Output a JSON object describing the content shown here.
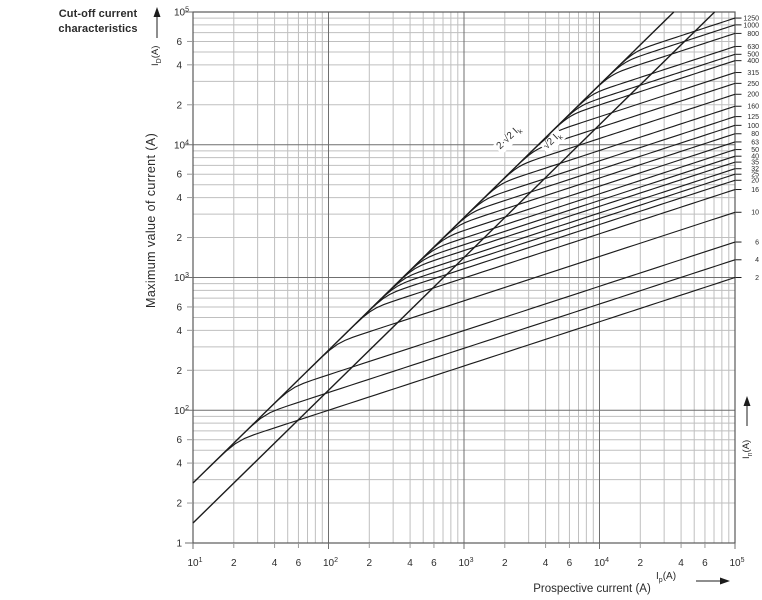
{
  "title": {
    "line1": "Cut-off current",
    "line2": "characteristics"
  },
  "colors": {
    "curve": "#1c1c1c",
    "grid_minor": "#bfbfbf",
    "grid_major": "#6f6f6f",
    "frame": "#5a5a5a",
    "text": "#2b2b2b"
  },
  "chart_data": {
    "type": "line",
    "title": "Cut-off current characteristics",
    "grid": "full log-log grid, minor lines at mantissa 2-9, dark decade lines",
    "x_axis": {
      "title": "Prospective current (A)",
      "symbol_main": "I",
      "symbol_sub": "p",
      "symbol_suffix": "(A)",
      "scale": "log",
      "range": [
        10,
        100000
      ],
      "exponents": [
        1,
        2,
        3,
        4,
        5
      ],
      "minor_labels": [
        2,
        4,
        6
      ]
    },
    "y_axis": {
      "title": "Maximum value of current (A)",
      "symbol_main": "I",
      "symbol_sub": "D",
      "symbol_suffix": "(A)",
      "scale": "log",
      "range": [
        10,
        100000
      ],
      "exponents": [
        5,
        4,
        3,
        2
      ],
      "bottom_label": "1",
      "minor_labels": [
        6,
        4,
        2
      ]
    },
    "right_axis": {
      "symbol_main": "I",
      "symbol_sub": "n",
      "symbol_suffix": "(A)",
      "meaning": "rated current of fuse (A), labels at curve end points"
    },
    "reference_lines": [
      {
        "label_main": "2·√2 I",
        "label_sub": "k",
        "factor": 2.8284,
        "description": "peak asymmetrical prospective current line y = 2√2·x"
      },
      {
        "label_main": "√2 I",
        "label_sub": "k",
        "factor": 1.4142,
        "description": "peak symmetrical prospective current line y = √2·x"
      }
    ],
    "series_note": "Each rated-current curve follows the 2√2·Ik line at low prospective current, then branches off with slope 1/3 (log-log) up to its cut-off value at 100 kA (right edge).",
    "series": [
      {
        "rating": "1250",
        "cutoff_at_100kA": 90000
      },
      {
        "rating": "1000",
        "cutoff_at_100kA": 80000
      },
      {
        "rating": "800",
        "cutoff_at_100kA": 69000
      },
      {
        "rating": "630",
        "cutoff_at_100kA": 55000
      },
      {
        "rating": "500",
        "cutoff_at_100kA": 48000
      },
      {
        "rating": "400",
        "cutoff_at_100kA": 43000
      },
      {
        "rating": "315",
        "cutoff_at_100kA": 35000
      },
      {
        "rating": "250",
        "cutoff_at_100kA": 29000
      },
      {
        "rating": "200",
        "cutoff_at_100kA": 24000
      },
      {
        "rating": "160",
        "cutoff_at_100kA": 19500
      },
      {
        "rating": "125",
        "cutoff_at_100kA": 16300
      },
      {
        "rating": "100",
        "cutoff_at_100kA": 14000
      },
      {
        "rating": "80",
        "cutoff_at_100kA": 12100
      },
      {
        "rating": "63",
        "cutoff_at_100kA": 10500
      },
      {
        "rating": "50",
        "cutoff_at_100kA": 9200
      },
      {
        "rating": "40",
        "cutoff_at_100kA": 8200
      },
      {
        "rating": "35",
        "cutoff_at_100kA": 7400
      },
      {
        "rating": "32",
        "cutoff_at_100kA": 6600
      },
      {
        "rating": "25",
        "cutoff_at_100kA": 6000
      },
      {
        "rating": "20",
        "cutoff_at_100kA": 5400
      },
      {
        "rating": "16",
        "cutoff_at_100kA": 4600
      },
      {
        "rating": "10",
        "cutoff_at_100kA": 3100
      },
      {
        "rating": "6",
        "cutoff_at_100kA": 1850
      },
      {
        "rating": "4",
        "cutoff_at_100kA": 1360
      },
      {
        "rating": "2",
        "cutoff_at_100kA": 1000
      }
    ]
  }
}
